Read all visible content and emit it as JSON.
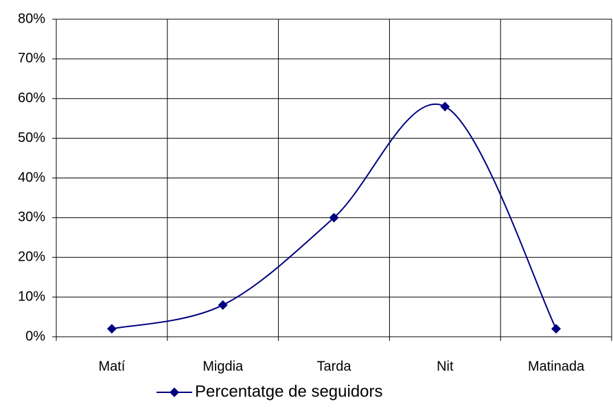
{
  "chart_data": {
    "type": "line",
    "categories": [
      "Matí",
      "Migdia",
      "Tarda",
      "Nit",
      "Matinada"
    ],
    "series": [
      {
        "name": "Percentatge de seguidors",
        "color": "#000080",
        "values": [
          2,
          8,
          30,
          58,
          2
        ]
      }
    ],
    "ylim": [
      0,
      80
    ],
    "yticks": [
      {
        "value": 0,
        "label": "0%"
      },
      {
        "value": 10,
        "label": "10%"
      },
      {
        "value": 20,
        "label": "20%"
      },
      {
        "value": 30,
        "label": "30%"
      },
      {
        "value": 40,
        "label": "40%"
      },
      {
        "value": 50,
        "label": "50%"
      },
      {
        "value": 60,
        "label": "60%"
      },
      {
        "value": 70,
        "label": "70%"
      },
      {
        "value": 80,
        "label": "80%"
      }
    ],
    "grid": true,
    "smooth": true,
    "legend": "bottom"
  }
}
